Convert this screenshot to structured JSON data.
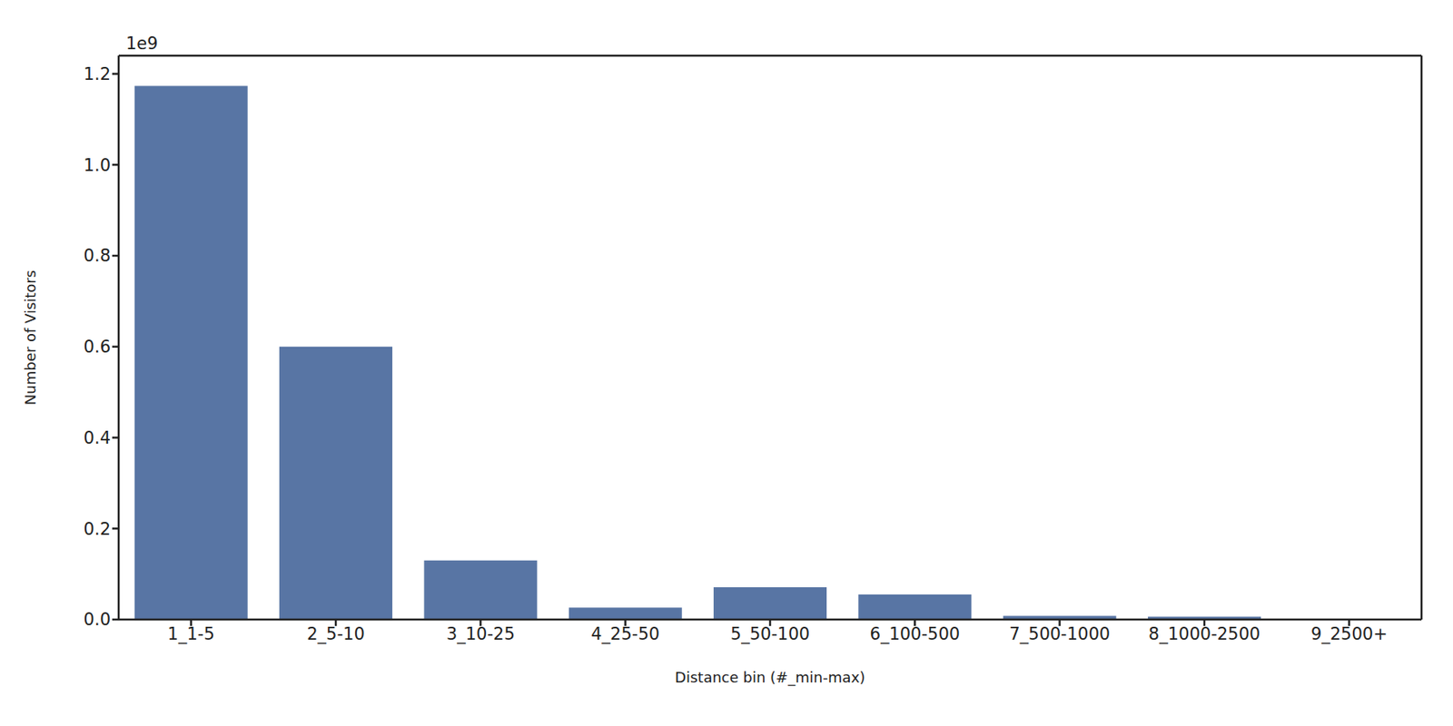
{
  "chart_data": {
    "type": "bar",
    "x_label": "Distance bin (#_min-max)",
    "y_label": "Number of Visitors",
    "annotations": [
      "1e9"
    ],
    "categories": [
      "1_1-5",
      "2_5-10",
      "3_10-25",
      "4_25-50",
      "5_50-100",
      "6_100-500",
      "7_500-1000",
      "8_1000-2500",
      "9_2500+"
    ],
    "values": [
      1.1735,
      0.6,
      0.13,
      0.026,
      0.071,
      0.055,
      0.008,
      0.006,
      0.001
    ],
    "color": "#5875a4",
    "ylim": [
      0,
      1.24
    ],
    "yticks": [
      {
        "value": 0,
        "label": "0.0"
      },
      0.2,
      0.4,
      0.6,
      0.8,
      {
        "value": 1,
        "label": "1.0"
      },
      1.2
    ],
    "grid": false
  }
}
